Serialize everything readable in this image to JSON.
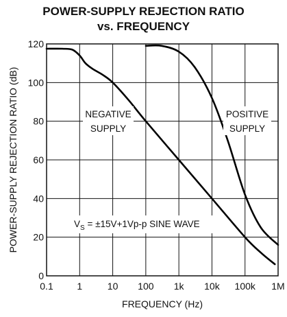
{
  "chart_data": {
    "type": "line",
    "title_line1": "POWER-SUPPLY REJECTION RATIO",
    "title_line2": "vs. FREQUENCY",
    "xlabel": "FREQUENCY (Hz)",
    "ylabel": "POWER-SUPPLY REJECTION RATIO (dB)",
    "x_scale": "log",
    "xlim": [
      0.1,
      1000000
    ],
    "ylim": [
      0,
      120
    ],
    "grid": true,
    "x_ticks": [
      {
        "value": 0.1,
        "label": "0.1"
      },
      {
        "value": 1,
        "label": "1"
      },
      {
        "value": 10,
        "label": "10"
      },
      {
        "value": 100,
        "label": "100"
      },
      {
        "value": 1000,
        "label": "1k"
      },
      {
        "value": 10000,
        "label": "10k"
      },
      {
        "value": 100000,
        "label": "100k"
      },
      {
        "value": 1000000,
        "label": "1M"
      }
    ],
    "y_ticks": [
      {
        "value": 0,
        "label": "0"
      },
      {
        "value": 20,
        "label": "20"
      },
      {
        "value": 40,
        "label": "40"
      },
      {
        "value": 60,
        "label": "60"
      },
      {
        "value": 80,
        "label": "80"
      },
      {
        "value": 100,
        "label": "100"
      },
      {
        "value": 120,
        "label": "120"
      }
    ],
    "series": [
      {
        "name": "NEGATIVE SUPPLY",
        "label_lines": [
          "NEGATIVE",
          "SUPPLY"
        ],
        "x": [
          0.1,
          0.3,
          0.6,
          1,
          1.5,
          2.5,
          5,
          10,
          30,
          100,
          1000,
          10000,
          100000,
          300000,
          800000
        ],
        "y": [
          117.5,
          117.5,
          117,
          114,
          110,
          107,
          104,
          100,
          91,
          80,
          60,
          40,
          20,
          12,
          6
        ]
      },
      {
        "name": "POSITIVE SUPPLY",
        "label_lines": [
          "POSITIVE",
          "SUPPLY"
        ],
        "x": [
          100,
          300,
          1000,
          3000,
          10000,
          30000,
          100000,
          300000,
          1000000
        ],
        "y": [
          119,
          119,
          116,
          108,
          92,
          70,
          42,
          25,
          16
        ]
      }
    ],
    "annotation": {
      "v_main": "V",
      "v_sub": "S",
      "text": " =  ±15V+1Vp-p SINE WAVE"
    }
  }
}
